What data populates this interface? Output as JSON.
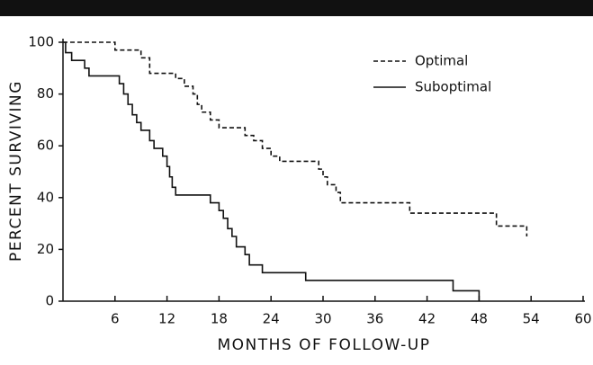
{
  "chart_data": {
    "type": "step",
    "xlabel": "MONTHS OF FOLLOW-UP",
    "ylabel": "PERCENT SURVIVING",
    "xlim": [
      0,
      60
    ],
    "xticks": [
      6,
      12,
      18,
      24,
      30,
      36,
      42,
      48,
      54,
      60
    ],
    "ylim": [
      0,
      100
    ],
    "yticks": [
      0,
      20,
      40,
      60,
      80,
      100
    ],
    "legend": "upper right",
    "series": [
      {
        "name": "Optimal",
        "color": "#111111",
        "dash": true,
        "x": [
          0,
          6,
          9,
          10,
          13,
          14,
          15,
          15.5,
          16,
          17,
          18,
          21,
          22,
          23,
          24,
          25,
          29.5,
          30,
          30.5,
          31.5,
          32,
          40,
          50,
          53.5
        ],
        "values": [
          100,
          97,
          94,
          88,
          86,
          83,
          80,
          76,
          73,
          70,
          67,
          64,
          62,
          59,
          56,
          54,
          51,
          48,
          45,
          42,
          38,
          34,
          29,
          25
        ]
      },
      {
        "name": "Suboptimal",
        "color": "#111111",
        "dash": false,
        "x": [
          0,
          0.3,
          1,
          2.5,
          3,
          6.5,
          7,
          7.5,
          8,
          8.5,
          9,
          10,
          10.5,
          11.5,
          12,
          12.3,
          12.6,
          13,
          17,
          18,
          18.5,
          19,
          19.5,
          20,
          21,
          21.5,
          23,
          28,
          45,
          48
        ],
        "values": [
          100,
          96,
          93,
          90,
          87,
          84,
          80,
          76,
          72,
          69,
          66,
          62,
          59,
          56,
          52,
          48,
          44,
          41,
          38,
          35,
          32,
          28,
          25,
          21,
          18,
          14,
          11,
          8,
          4,
          0
        ]
      }
    ]
  }
}
